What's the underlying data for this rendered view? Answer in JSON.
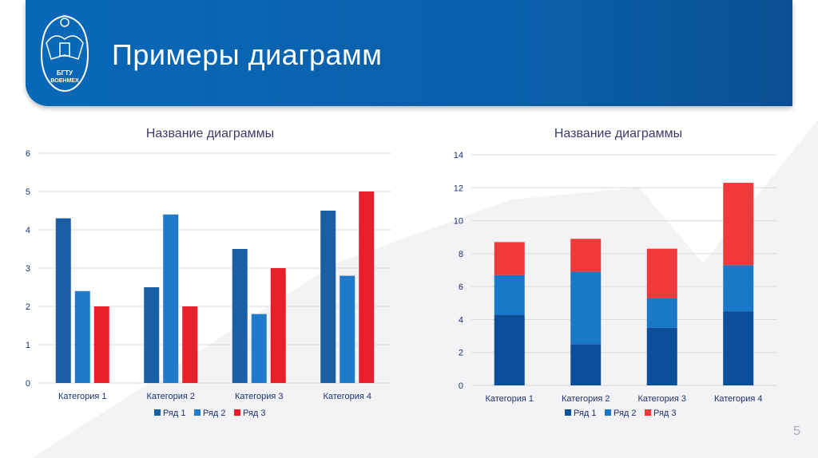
{
  "header": {
    "title": "Примеры диаграмм",
    "logo_text": "БГТУ ВОЕНМЕХ"
  },
  "page_number": "5",
  "chart_data": [
    {
      "type": "bar",
      "title": "Название диаграммы",
      "categories": [
        "Категория 1",
        "Категория 2",
        "Категория 3",
        "Категория 4"
      ],
      "series": [
        {
          "name": "Ряд 1",
          "values": [
            4.3,
            2.5,
            3.5,
            4.5
          ],
          "color": "#1a5ea6"
        },
        {
          "name": "Ряд 2",
          "values": [
            2.4,
            4.4,
            1.8,
            2.8
          ],
          "color": "#1f7acb"
        },
        {
          "name": "Ряд 3",
          "values": [
            2,
            2,
            3,
            5
          ],
          "color": "#e61f2b"
        }
      ],
      "ylim": [
        0,
        6
      ],
      "yticks": [
        "0",
        "1",
        "2",
        "3",
        "4",
        "5",
        "6"
      ],
      "grid": true,
      "legend": "bottom"
    },
    {
      "type": "stacked-bar",
      "title": "Название диаграммы",
      "categories": [
        "Категория 1",
        "Категория 2",
        "Категория 3",
        "Категория 4"
      ],
      "series": [
        {
          "name": "Ряд 1",
          "values": [
            4.3,
            2.5,
            3.5,
            4.5
          ],
          "color": "#0b4e99"
        },
        {
          "name": "Ряд 2",
          "values": [
            2.4,
            4.4,
            1.8,
            2.8
          ],
          "color": "#1a78c8"
        },
        {
          "name": "Ряд 3",
          "values": [
            2,
            2,
            3,
            5
          ],
          "color": "#f03a3a"
        }
      ],
      "ylim": [
        0,
        14
      ],
      "yticks": [
        "0",
        "2",
        "4",
        "6",
        "8",
        "10",
        "12",
        "14"
      ],
      "grid": true,
      "legend": "bottom"
    }
  ]
}
